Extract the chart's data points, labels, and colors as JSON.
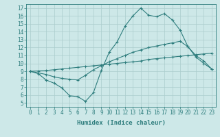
{
  "xlabel": "Humidex (Indice chaleur)",
  "xlim": [
    -0.5,
    23.5
  ],
  "ylim": [
    4.5,
    17.5
  ],
  "xticks": [
    0,
    1,
    2,
    3,
    4,
    5,
    6,
    7,
    8,
    9,
    10,
    11,
    12,
    13,
    14,
    15,
    16,
    17,
    18,
    19,
    20,
    21,
    22,
    23
  ],
  "yticks": [
    5,
    6,
    7,
    8,
    9,
    10,
    11,
    12,
    13,
    14,
    15,
    16,
    17
  ],
  "bg_color": "#cde8e8",
  "grid_color": "#b8d8d8",
  "line_color": "#2e7d7d",
  "line1_x": [
    0,
    1,
    2,
    3,
    4,
    5,
    6,
    7,
    8,
    9,
    10,
    11,
    12,
    13,
    14,
    15,
    16,
    17,
    18,
    19,
    20,
    21,
    22,
    23
  ],
  "line1_y": [
    9.0,
    8.7,
    7.9,
    7.5,
    6.9,
    5.9,
    5.8,
    5.2,
    6.3,
    9.1,
    11.4,
    12.7,
    14.7,
    16.0,
    17.0,
    16.1,
    15.9,
    16.3,
    15.5,
    14.2,
    12.1,
    10.8,
    10.0,
    9.3
  ],
  "line2_x": [
    0,
    2,
    3,
    4,
    5,
    6,
    7,
    8,
    9,
    10,
    11,
    12,
    13,
    14,
    15,
    16,
    17,
    18,
    19,
    20,
    21,
    22,
    23
  ],
  "line2_y": [
    9.0,
    8.6,
    8.3,
    8.1,
    8.0,
    7.9,
    8.5,
    9.2,
    9.7,
    10.2,
    10.6,
    11.0,
    11.4,
    11.7,
    12.0,
    12.2,
    12.4,
    12.6,
    12.8,
    12.1,
    11.0,
    10.3,
    9.3
  ],
  "line3_x": [
    0,
    1,
    2,
    3,
    4,
    5,
    6,
    7,
    8,
    9,
    10,
    11,
    12,
    13,
    14,
    15,
    16,
    17,
    18,
    19,
    20,
    21,
    22,
    23
  ],
  "line3_y": [
    9.0,
    9.05,
    9.1,
    9.2,
    9.3,
    9.4,
    9.5,
    9.6,
    9.7,
    9.8,
    9.9,
    10.0,
    10.1,
    10.2,
    10.3,
    10.5,
    10.6,
    10.7,
    10.8,
    10.9,
    11.0,
    11.1,
    11.2,
    11.3
  ],
  "marker": "+",
  "markersize": 3,
  "linewidth": 0.8
}
